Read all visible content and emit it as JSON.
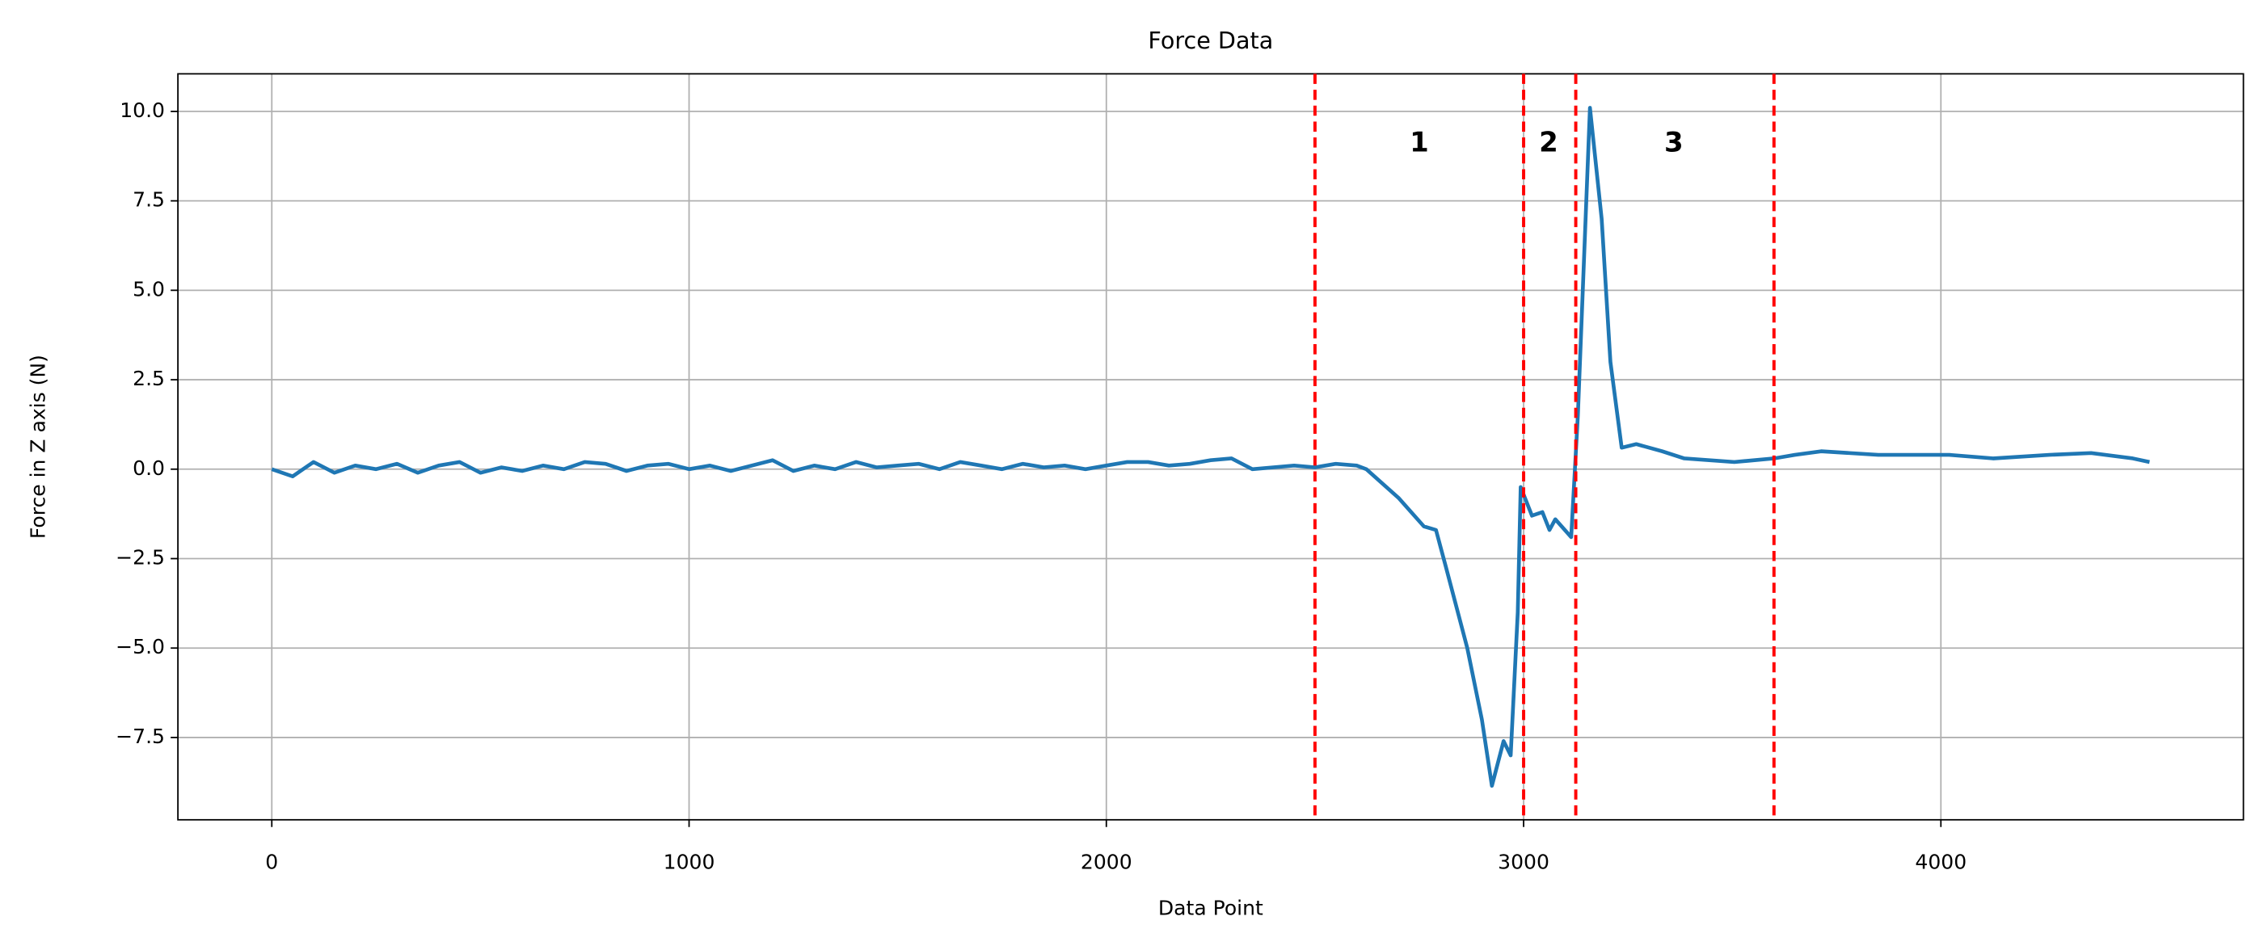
{
  "chart_data": {
    "type": "line",
    "title": "Force Data",
    "xlabel": "Data Point",
    "ylabel": "Force in Z axis (N)",
    "xlim": [
      -225,
      4725
    ],
    "ylim": [
      -9.8,
      11.05
    ],
    "xticks": [
      0,
      1000,
      2000,
      3000,
      4000
    ],
    "yticks": [
      {
        "value": -7.5,
        "label": "−7.5"
      },
      {
        "value": -5,
        "label": "−5.0"
      },
      {
        "value": -2.5,
        "label": "−2.5"
      },
      {
        "value": 0,
        "label": "0.0"
      },
      2.5,
      {
        "value": 5,
        "label": "5.0"
      },
      7.5,
      {
        "value": 10,
        "label": "10.0"
      }
    ],
    "grid": true,
    "series": [
      {
        "color": "#1f77b4",
        "x": [
          0,
          50,
          100,
          150,
          200,
          250,
          300,
          350,
          400,
          450,
          500,
          550,
          600,
          650,
          700,
          750,
          800,
          850,
          900,
          950,
          1000,
          1050,
          1100,
          1150,
          1200,
          1250,
          1300,
          1350,
          1400,
          1450,
          1500,
          1550,
          1600,
          1650,
          1700,
          1750,
          1800,
          1850,
          1900,
          1950,
          2000,
          2050,
          2100,
          2150,
          2200,
          2250,
          2300,
          2350,
          2400,
          2450,
          2500,
          2550,
          2600,
          2623,
          2700,
          2761,
          2790,
          2813,
          2865,
          2900,
          2924,
          2952,
          2969,
          2986,
          2993,
          3020,
          3045,
          3062,
          3076,
          3114,
          3130,
          3159,
          3187,
          3208,
          3235,
          3270,
          3332,
          3385,
          3505,
          3600,
          3650,
          3713,
          3850,
          4020,
          4125,
          4260,
          4360,
          4460,
          4500
        ],
        "values": [
          0,
          -0.2,
          0.2,
          -0.1,
          0.1,
          0.0,
          0.15,
          -0.1,
          0.1,
          0.2,
          -0.1,
          0.05,
          -0.05,
          0.1,
          0.0,
          0.2,
          0.15,
          -0.05,
          0.1,
          0.15,
          0.0,
          0.1,
          -0.05,
          0.1,
          0.25,
          -0.05,
          0.1,
          0.0,
          0.2,
          0.05,
          0.1,
          0.15,
          0.0,
          0.2,
          0.1,
          0.0,
          0.15,
          0.05,
          0.1,
          0.0,
          0.1,
          0.2,
          0.2,
          0.1,
          0.15,
          0.25,
          0.3,
          0.0,
          0.05,
          0.1,
          0.05,
          0.15,
          0.1,
          0.0,
          -0.8,
          -1.6,
          -1.7,
          -2.7,
          -5.0,
          -7.0,
          -8.85,
          -7.6,
          -8.0,
          -4.0,
          -0.5,
          -1.3,
          -1.2,
          -1.7,
          -1.4,
          -1.9,
          1.5,
          10.1,
          7.0,
          3.0,
          0.6,
          0.7,
          0.5,
          0.3,
          0.2,
          0.3,
          0.4,
          0.5,
          0.4,
          0.4,
          0.3,
          0.4,
          0.45,
          0.3,
          0.2
        ]
      }
    ],
    "vlines": {
      "color": "#ff0000",
      "x": [
        2500,
        3000,
        3125,
        3600
      ]
    },
    "annotations": [
      {
        "text": "1",
        "x": 2750,
        "y": 9.1
      },
      {
        "text": "2",
        "x": 3060,
        "y": 9.1
      },
      {
        "text": "3",
        "x": 3360,
        "y": 9.1
      }
    ]
  }
}
